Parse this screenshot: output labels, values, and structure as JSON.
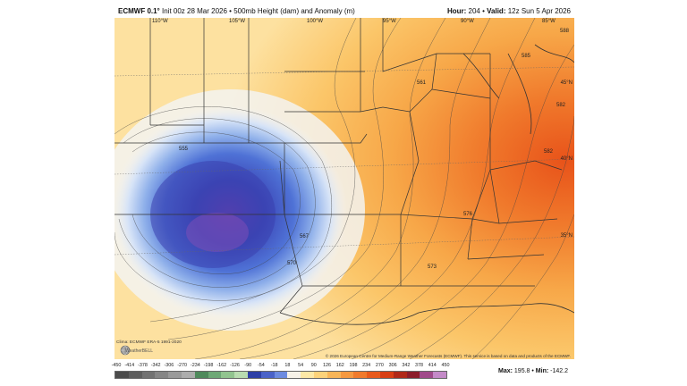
{
  "header": {
    "model": "ECMWF 0.1°",
    "init": "Init 00z 28 Mar 2026",
    "product": "500mb Height (dam) and Anomaly (m)",
    "hour_label": "Hour:",
    "hour": "204",
    "valid_label": "Valid:",
    "valid": "12z Sun 5 Apr 2026"
  },
  "map": {
    "lon_labels": [
      "110°W",
      "105°W",
      "100°W",
      "95°W",
      "90°W",
      "85°W"
    ],
    "lat_labels": [
      "45°N",
      "40°N",
      "35°N"
    ],
    "contour_labels": [
      "555",
      "561",
      "567",
      "570",
      "573",
      "576",
      "582",
      "582",
      "585",
      "588"
    ],
    "climo_note": "Clima: ECMWF ERA-5 1991-2020",
    "logo_text": "WeatherBELL",
    "copyright": "© 2026 European Centre for Medium-Range Weather Forecasts (ECMWF). This service is based on data and products of the ECMWF."
  },
  "colorbar": {
    "ticks": [
      "-450",
      "-414",
      "-378",
      "-342",
      "-306",
      "-270",
      "-234",
      "-198",
      "-162",
      "-126",
      "-90",
      "-54",
      "-18",
      "18",
      "54",
      "90",
      "126",
      "162",
      "198",
      "234",
      "270",
      "306",
      "342",
      "378",
      "414",
      "450"
    ],
    "colors": [
      "#4b4b4b",
      "#5e5e5e",
      "#727272",
      "#868686",
      "#9a9a9a",
      "#adadad",
      "#4f8a5c",
      "#6ea876",
      "#92c48f",
      "#b9dcb0",
      "#2d3fa6",
      "#4a62c8",
      "#6d8be0",
      "#f7f2e8",
      "#fde8a6",
      "#fcd27a",
      "#f8b558",
      "#f59840",
      "#f07a2c",
      "#e85a1c",
      "#d83e14",
      "#b02818",
      "#8c1c2a",
      "#a04a8a",
      "#c48ac8"
    ],
    "max_label": "Max:",
    "max": "195.8",
    "min_label": "Min:",
    "min": "-142.2"
  }
}
